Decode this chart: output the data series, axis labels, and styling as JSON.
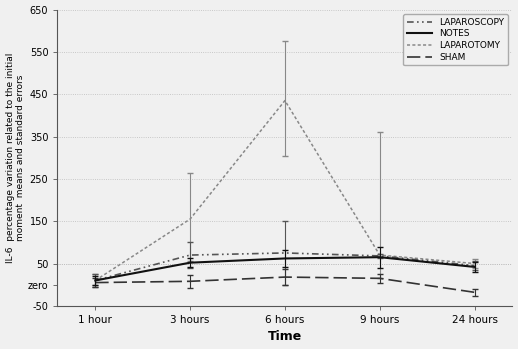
{
  "x_positions": [
    1,
    2,
    3,
    4,
    5
  ],
  "x_labels": [
    "1 hour",
    "3 hours",
    "6 hours",
    "9 hours",
    "24 hours"
  ],
  "xlabel": "Time",
  "ylabel": "IL-6  percentage variation related to the initial\nmoment  means and standard errors",
  "ylim": [
    -50,
    650
  ],
  "yticks": [
    -50,
    0,
    50,
    150,
    250,
    350,
    450,
    550,
    650
  ],
  "ytick_labels": [
    "-50",
    "zero",
    "50",
    "150",
    "250",
    "350",
    "450",
    "550",
    "650"
  ],
  "grid_yticks": [
    50,
    150,
    250,
    350,
    450,
    550,
    650
  ],
  "grid_color": "#bbbbbb",
  "background_color": "#f0f0f0",
  "laparoscopy": {
    "y": [
      10,
      70,
      75,
      68,
      45
    ],
    "yerr_lo": [
      15,
      30,
      75,
      5,
      10
    ],
    "yerr_hi": [
      15,
      30,
      75,
      5,
      10
    ],
    "color": "#555555",
    "label": "LAPAROSCOPY",
    "linewidth": 1.2
  },
  "notes": {
    "y": [
      10,
      52,
      62,
      65,
      42
    ],
    "yerr_lo": [
      10,
      10,
      20,
      25,
      12
    ],
    "yerr_hi": [
      10,
      10,
      20,
      25,
      12
    ],
    "color": "#111111",
    "label": "NOTES",
    "linewidth": 1.5
  },
  "laparotomy": {
    "y": [
      10,
      155,
      435,
      70,
      50
    ],
    "yerr_lo": [
      10,
      100,
      130,
      55,
      10
    ],
    "yerr_hi": [
      15,
      110,
      140,
      290,
      10
    ],
    "color": "#888888",
    "label": "LAPAROTOMY",
    "linewidth": 1.1
  },
  "sham": {
    "y": [
      5,
      8,
      18,
      15,
      -18
    ],
    "yerr_lo": [
      10,
      15,
      18,
      10,
      8
    ],
    "yerr_hi": [
      10,
      15,
      18,
      10,
      8
    ],
    "color": "#333333",
    "label": "SHAM",
    "linewidth": 1.2
  }
}
